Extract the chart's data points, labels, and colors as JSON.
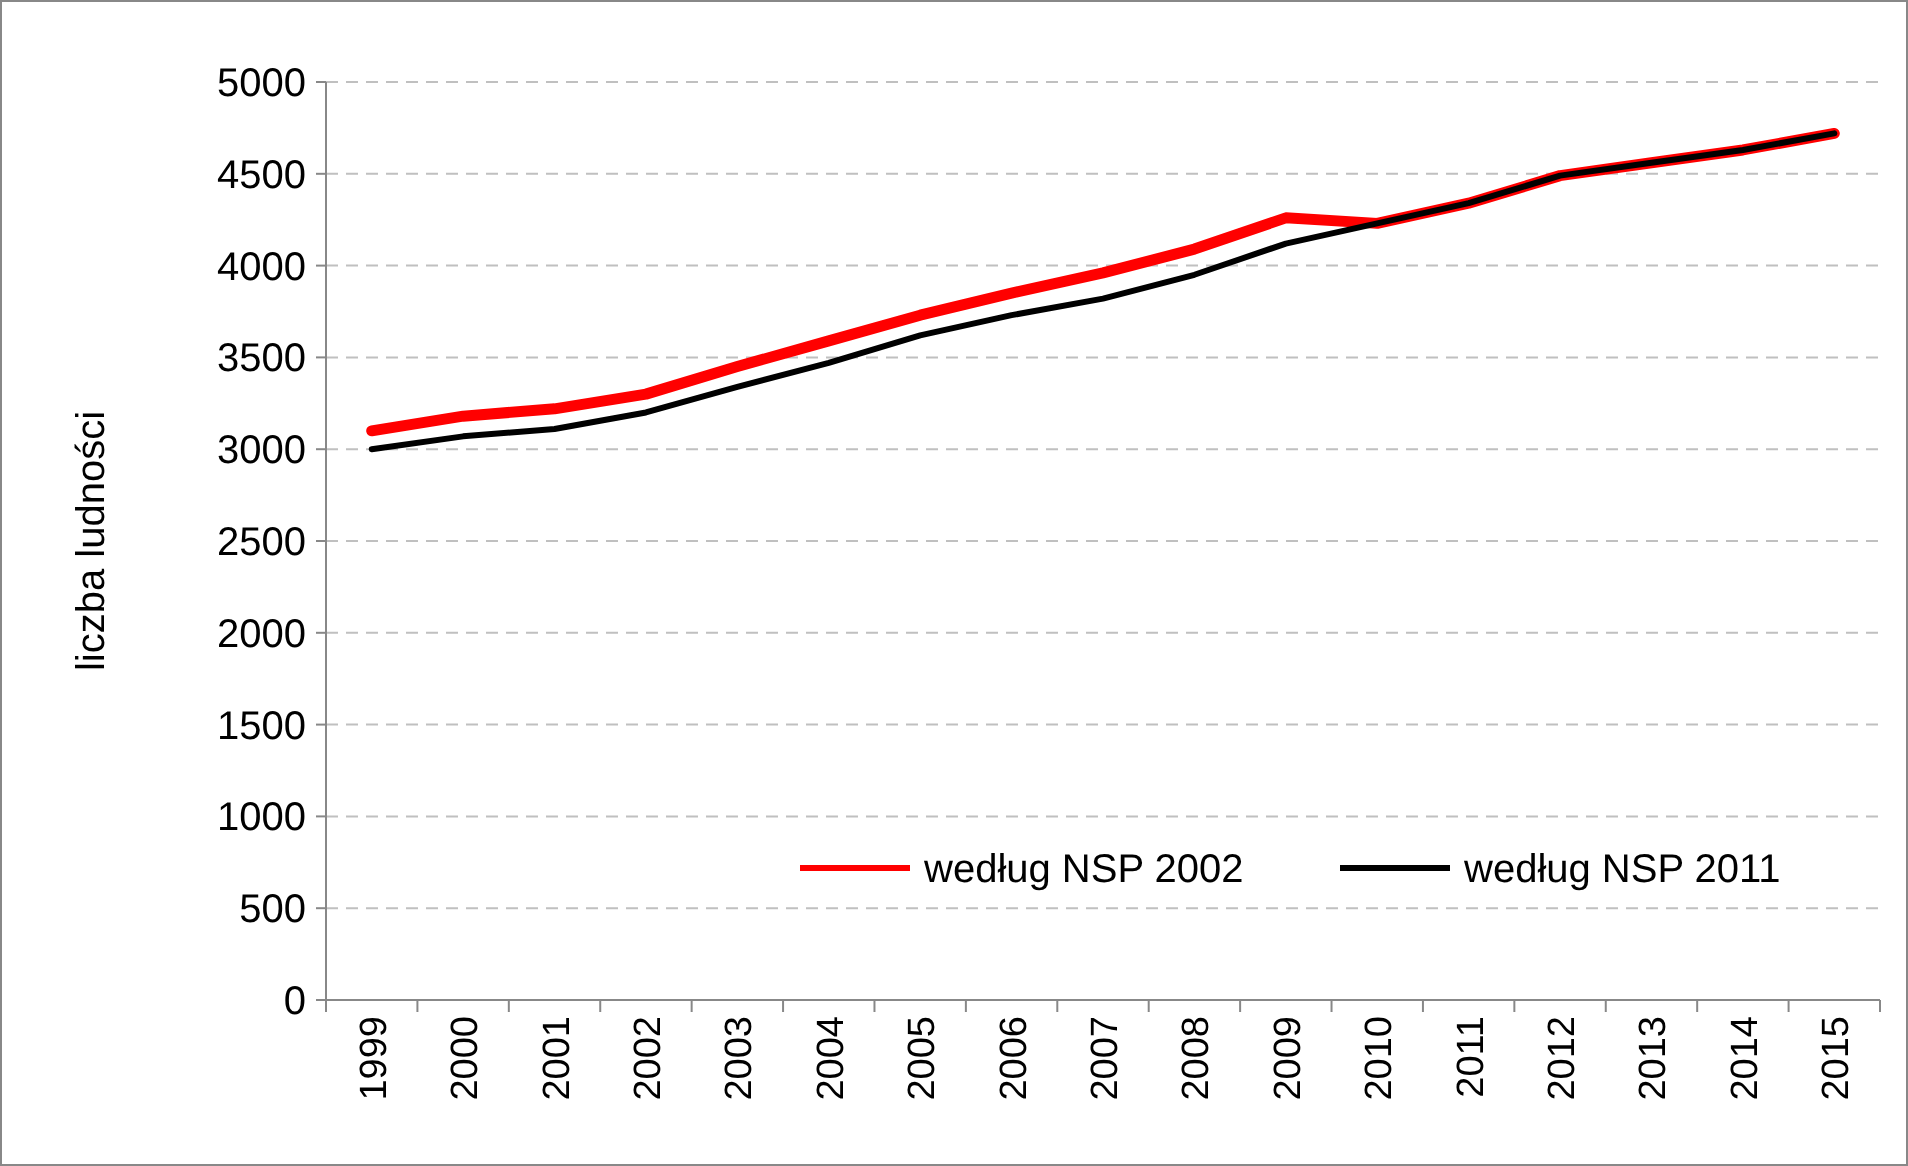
{
  "chart_data": {
    "type": "line",
    "ylabel": "liczba ludności",
    "categories": [
      "1999",
      "2000",
      "2001",
      "2002",
      "2003",
      "2004",
      "2005",
      "2006",
      "2007",
      "2008",
      "2009",
      "2010",
      "2011",
      "2012",
      "2013",
      "2014",
      "2015"
    ],
    "series": [
      {
        "name": "według NSP 2002",
        "color": "#ff0000",
        "values": [
          3100,
          3180,
          3220,
          3300,
          3450,
          3590,
          3730,
          3850,
          3960,
          4090,
          4260,
          4230,
          4340,
          4490,
          4560,
          4630,
          4720
        ]
      },
      {
        "name": "według NSP 2011",
        "color": "#000000",
        "values": [
          3000,
          3070,
          3110,
          3200,
          3340,
          3470,
          3620,
          3730,
          3820,
          3950,
          4120,
          4230,
          4340,
          4490,
          4560,
          4630,
          4720
        ]
      }
    ],
    "ylim": [
      0,
      5000
    ],
    "yticks": [
      0,
      500,
      1000,
      1500,
      2000,
      2500,
      3000,
      3500,
      4000,
      4500,
      5000
    ],
    "grid": "y",
    "legend": "bottom right",
    "marker": "none",
    "line_style": "solid"
  }
}
